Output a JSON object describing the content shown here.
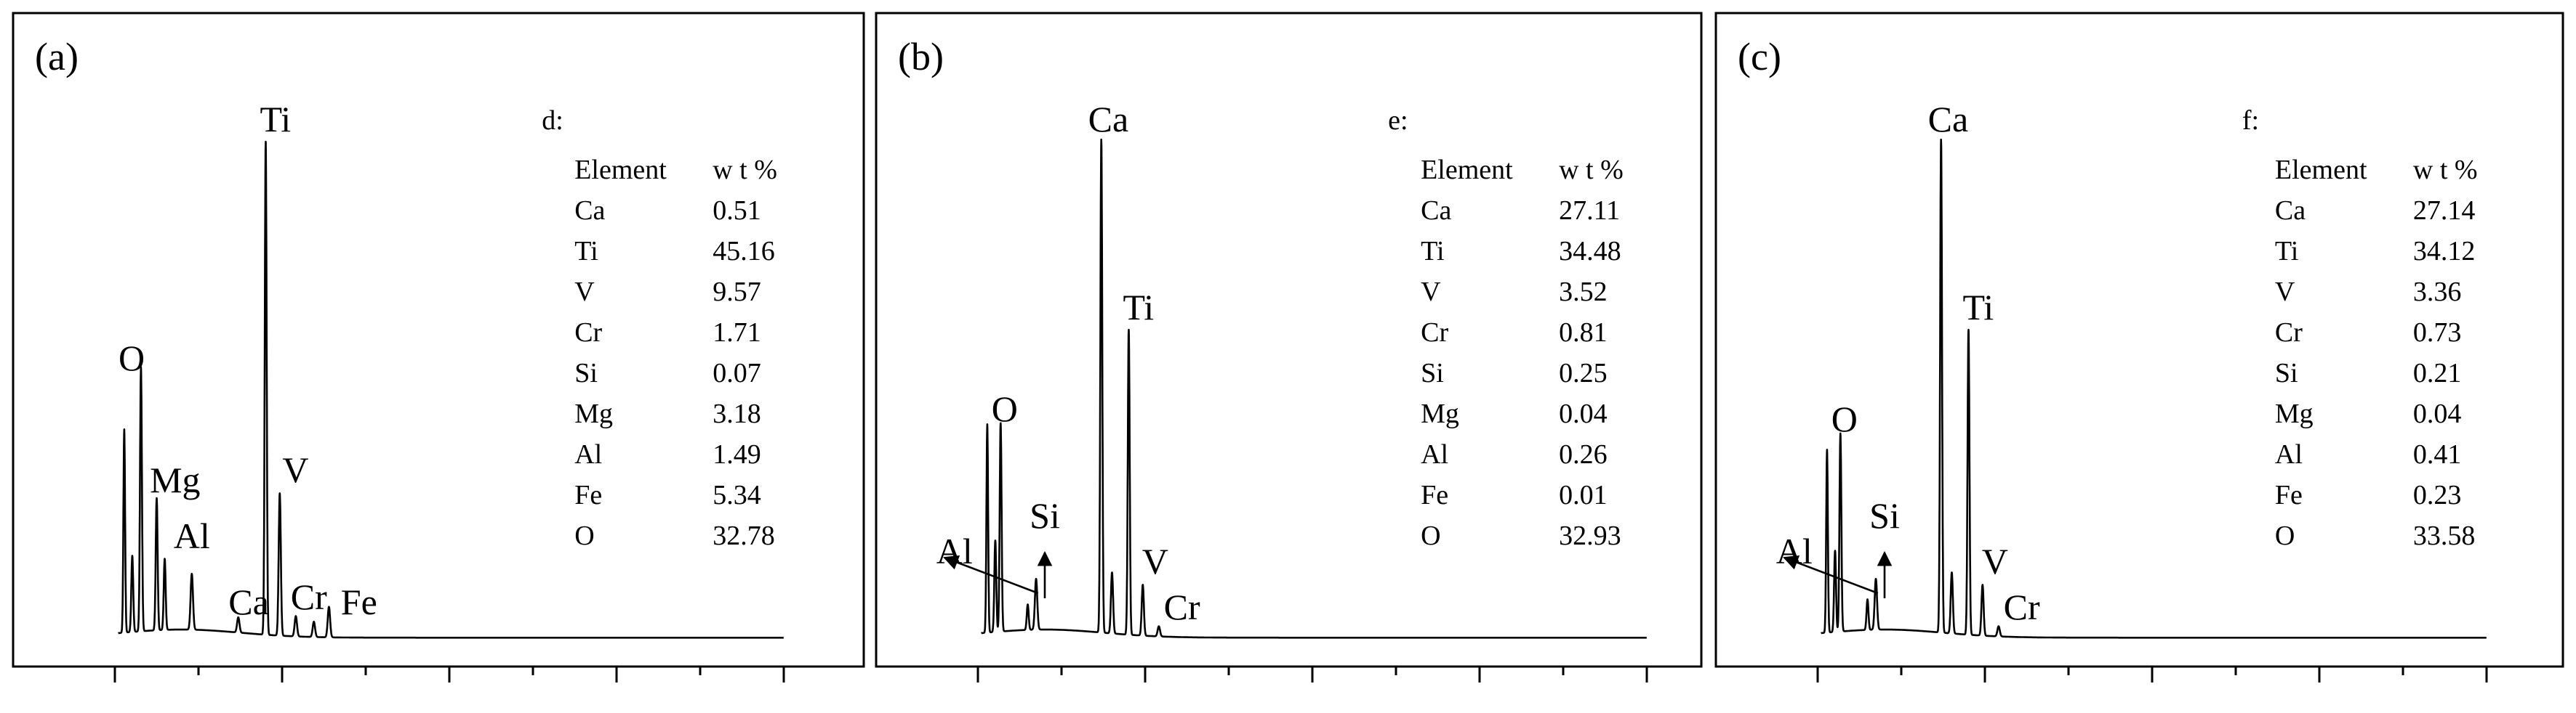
{
  "chart_data": [
    {
      "type": "line",
      "panel_label": "(a)",
      "table_caption": "d:",
      "table_headers": [
        "Element",
        "w t %"
      ],
      "table_rows": [
        [
          "Ca",
          "0.51"
        ],
        [
          "Ti",
          "45.16"
        ],
        [
          "V",
          "9.57"
        ],
        [
          "Cr",
          "1.71"
        ],
        [
          "Si",
          "0.07"
        ],
        [
          "Mg",
          "3.18"
        ],
        [
          "Al",
          "1.49"
        ],
        [
          "Fe",
          "5.34"
        ],
        [
          "O",
          "32.78"
        ]
      ],
      "xlim": [
        0,
        20
      ],
      "ylim": [
        0,
        100
      ],
      "x_ticks_major": [
        0,
        5,
        10,
        15,
        20
      ],
      "x_ticks_minor": [
        2.5,
        7.5,
        12.5,
        17.5
      ],
      "peaks": [
        {
          "x": 0.28,
          "y": 40,
          "w": 0.035
        },
        {
          "x": 0.52,
          "y": 15,
          "w": 0.04
        },
        {
          "x": 0.78,
          "y": 52,
          "w": 0.04
        },
        {
          "x": 1.25,
          "y": 26,
          "w": 0.04
        },
        {
          "x": 1.49,
          "y": 14,
          "w": 0.04
        },
        {
          "x": 2.3,
          "y": 11,
          "w": 0.05
        },
        {
          "x": 3.69,
          "y": 3,
          "w": 0.05
        },
        {
          "x": 4.51,
          "y": 97,
          "w": 0.04
        },
        {
          "x": 4.93,
          "y": 28,
          "w": 0.045
        },
        {
          "x": 5.41,
          "y": 4,
          "w": 0.05
        },
        {
          "x": 5.95,
          "y": 3,
          "w": 0.05
        },
        {
          "x": 6.4,
          "y": 6,
          "w": 0.05
        }
      ],
      "labels": [
        {
          "text": "O",
          "x": 0.5,
          "y": 52
        },
        {
          "text": "Mg",
          "x": 1.8,
          "y": 28
        },
        {
          "text": "Al",
          "x": 2.3,
          "y": 17
        },
        {
          "text": "Ti",
          "x": 4.8,
          "y": 99
        },
        {
          "text": "V",
          "x": 5.4,
          "y": 30
        },
        {
          "text": "Ca",
          "x": 4.0,
          "y": 4
        },
        {
          "text": "Cr",
          "x": 5.8,
          "y": 5
        },
        {
          "text": "Fe",
          "x": 7.3,
          "y": 4
        }
      ],
      "arrows": []
    },
    {
      "type": "line",
      "panel_label": "(b)",
      "table_caption": "e:",
      "table_headers": [
        "Element",
        "w t %"
      ],
      "table_rows": [
        [
          "Ca",
          "27.11"
        ],
        [
          "Ti",
          "34.48"
        ],
        [
          "V",
          "3.52"
        ],
        [
          "Cr",
          "0.81"
        ],
        [
          "Si",
          "0.25"
        ],
        [
          "Mg",
          "0.04"
        ],
        [
          "Al",
          "0.26"
        ],
        [
          "Fe",
          "0.01"
        ],
        [
          "O",
          "32.93"
        ]
      ],
      "xlim": [
        0,
        20
      ],
      "ylim": [
        0,
        100
      ],
      "x_ticks_major": [
        0,
        5,
        10,
        15,
        20
      ],
      "x_ticks_minor": [
        2.5,
        7.5,
        12.5,
        17.5
      ],
      "peaks": [
        {
          "x": 0.28,
          "y": 41,
          "w": 0.035
        },
        {
          "x": 0.52,
          "y": 18,
          "w": 0.04
        },
        {
          "x": 0.68,
          "y": 41,
          "w": 0.04
        },
        {
          "x": 1.49,
          "y": 5,
          "w": 0.04
        },
        {
          "x": 1.74,
          "y": 10,
          "w": 0.05
        },
        {
          "x": 3.69,
          "y": 97,
          "w": 0.04
        },
        {
          "x": 4.01,
          "y": 12,
          "w": 0.045
        },
        {
          "x": 4.51,
          "y": 60,
          "w": 0.04
        },
        {
          "x": 4.93,
          "y": 10,
          "w": 0.045
        },
        {
          "x": 5.41,
          "y": 2,
          "w": 0.05
        }
      ],
      "labels": [
        {
          "text": "O",
          "x": 0.8,
          "y": 42
        },
        {
          "text": "Ca",
          "x": 3.9,
          "y": 99
        },
        {
          "text": "Ti",
          "x": 4.8,
          "y": 62
        },
        {
          "text": "V",
          "x": 5.3,
          "y": 12
        },
        {
          "text": "Cr",
          "x": 6.1,
          "y": 3
        },
        {
          "text": "Si",
          "x": 2.0,
          "y": 21
        },
        {
          "text": "Al",
          "x": -0.7,
          "y": 14
        }
      ],
      "arrows": [
        {
          "x1": 1.8,
          "y1": 9,
          "x2": -1.0,
          "y2": 16
        },
        {
          "x1": 2.0,
          "y1": 8,
          "x2": 2.0,
          "y2": 17
        }
      ]
    },
    {
      "type": "line",
      "panel_label": "(c)",
      "table_caption": "f:",
      "table_headers": [
        "Element",
        "w t %"
      ],
      "table_rows": [
        [
          "Ca",
          "27.14"
        ],
        [
          "Ti",
          "34.12"
        ],
        [
          "V",
          "3.36"
        ],
        [
          "Cr",
          "0.73"
        ],
        [
          "Si",
          "0.21"
        ],
        [
          "Mg",
          "0.04"
        ],
        [
          "Al",
          "0.41"
        ],
        [
          "Fe",
          "0.23"
        ],
        [
          "O",
          "33.58"
        ]
      ],
      "xlim": [
        0,
        20
      ],
      "ylim": [
        0,
        100
      ],
      "x_ticks_major": [
        0,
        5,
        10,
        15,
        20
      ],
      "x_ticks_minor": [
        2.5,
        7.5,
        12.5,
        17.5
      ],
      "peaks": [
        {
          "x": 0.28,
          "y": 36,
          "w": 0.035
        },
        {
          "x": 0.52,
          "y": 16,
          "w": 0.04
        },
        {
          "x": 0.68,
          "y": 39,
          "w": 0.04
        },
        {
          "x": 1.49,
          "y": 6,
          "w": 0.04
        },
        {
          "x": 1.74,
          "y": 10,
          "w": 0.05
        },
        {
          "x": 3.69,
          "y": 97,
          "w": 0.04
        },
        {
          "x": 4.01,
          "y": 12,
          "w": 0.045
        },
        {
          "x": 4.51,
          "y": 60,
          "w": 0.04
        },
        {
          "x": 4.93,
          "y": 10,
          "w": 0.045
        },
        {
          "x": 5.41,
          "y": 2,
          "w": 0.05
        }
      ],
      "labels": [
        {
          "text": "O",
          "x": 0.8,
          "y": 40
        },
        {
          "text": "Ca",
          "x": 3.9,
          "y": 99
        },
        {
          "text": "Ti",
          "x": 4.8,
          "y": 62
        },
        {
          "text": "V",
          "x": 5.3,
          "y": 12
        },
        {
          "text": "Cr",
          "x": 6.1,
          "y": 3
        },
        {
          "text": "Si",
          "x": 2.0,
          "y": 21
        },
        {
          "text": "Al",
          "x": -0.7,
          "y": 14
        }
      ],
      "arrows": [
        {
          "x1": 1.8,
          "y1": 9,
          "x2": -1.0,
          "y2": 16
        },
        {
          "x1": 2.0,
          "y1": 8,
          "x2": 2.0,
          "y2": 17
        }
      ]
    }
  ]
}
